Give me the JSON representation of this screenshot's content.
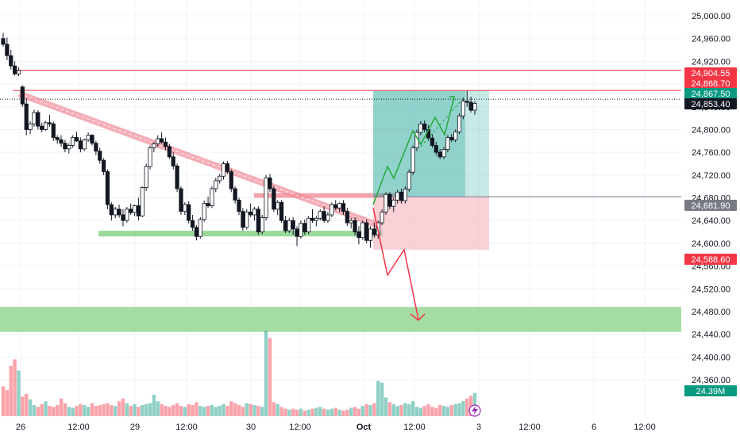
{
  "chart_data": {
    "type": "candlestick",
    "y_axis": {
      "ticks": [
        "25,000.00",
        "24,960.00",
        "24,920.00",
        "24,880.00",
        "24,840.00",
        "24,800.00",
        "24,760.00",
        "24,720.00",
        "24,680.00",
        "24,640.00",
        "24,600.00",
        "24,560.00",
        "24,520.00",
        "24,480.00",
        "24,440.00",
        "24,400.00",
        "24,360.00"
      ],
      "tick_values": [
        25000,
        24960,
        24920,
        24880,
        24840,
        24800,
        24760,
        24720,
        24680,
        24640,
        24600,
        24560,
        24520,
        24480,
        24440,
        24400,
        24360
      ],
      "ylim": [
        24336,
        25021
      ]
    },
    "x_axis": {
      "ticks": [
        {
          "label": "26",
          "bold": false
        },
        {
          "label": "12:00",
          "bold": false
        },
        {
          "label": "29",
          "bold": false
        },
        {
          "label": "12:00",
          "bold": false
        },
        {
          "label": "30",
          "bold": false
        },
        {
          "label": "12:00",
          "bold": false
        },
        {
          "label": "Oct",
          "bold": true
        },
        {
          "label": "12:00",
          "bold": false
        },
        {
          "label": "3",
          "bold": false
        },
        {
          "label": "12:00",
          "bold": false
        },
        {
          "label": "6",
          "bold": false
        },
        {
          "label": "12:00",
          "bold": false
        }
      ]
    },
    "price_labels": [
      {
        "text": "24,904.55",
        "value": 24904.55,
        "color": "#f23645"
      },
      {
        "text": "24,868.70",
        "value": 24868.7,
        "color": "#f23645"
      },
      {
        "text": "24,867.50",
        "value": 24867.5,
        "color": "#089981"
      },
      {
        "text": "24,853.40",
        "value": 24853.4,
        "color": "#131722"
      },
      {
        "text": "24,681.90",
        "value": 24681.9,
        "color": "#787b86"
      },
      {
        "text": "24,588.60",
        "value": 24588.6,
        "color": "#f23645"
      }
    ],
    "volume_label": {
      "text": "24.39M",
      "color": "#089981"
    },
    "horizontal_lines": [
      {
        "value": 24904.55,
        "color": "#f23645"
      },
      {
        "value": 24868.7,
        "color": "#f23645"
      },
      {
        "value": 24853.4,
        "color": "#131722",
        "style": "dotted"
      }
    ],
    "zones": {
      "support": {
        "low": 24612,
        "high": 24622,
        "color": "#7fcf7f"
      },
      "supply": {
        "low": 24680,
        "high": 24688,
        "color": "#f28b98"
      },
      "demand": {
        "low": 24444,
        "high": 24488,
        "color": "#7fcf7f"
      },
      "position_target": {
        "low": 24681.9,
        "high": 24868.7,
        "color": "#26a69a"
      },
      "position_stop": {
        "low": 24588.6,
        "high": 24681.9,
        "color": "#f7b3bb"
      }
    },
    "trendline": {
      "from": 24863,
      "to": 24630,
      "color": "#f28b98"
    },
    "colors": {
      "up": "#089981",
      "down": "#f23645",
      "grid": "#f0f3fa",
      "axis_text": "#131722"
    },
    "candles": [
      [
        24960,
        24970,
        24946,
        24950
      ],
      [
        24950,
        24962,
        24922,
        24930
      ],
      [
        24930,
        24940,
        24906,
        24912
      ],
      [
        24912,
        24920,
        24895,
        24898
      ],
      [
        24898,
        24910,
        24894,
        24904
      ],
      [
        24875,
        24878,
        24840,
        24845
      ],
      [
        24845,
        24855,
        24790,
        24800
      ],
      [
        24800,
        24815,
        24792,
        24810
      ],
      [
        24810,
        24835,
        24805,
        24830
      ],
      [
        24830,
        24834,
        24800,
        24806
      ],
      [
        24806,
        24812,
        24795,
        24800
      ],
      [
        24800,
        24815,
        24798,
        24812
      ],
      [
        24812,
        24826,
        24805,
        24810
      ],
      [
        24810,
        24814,
        24780,
        24786
      ],
      [
        24786,
        24790,
        24775,
        24782
      ],
      [
        24782,
        24790,
        24770,
        24776
      ],
      [
        24776,
        24782,
        24760,
        24766
      ],
      [
        24766,
        24776,
        24758,
        24772
      ],
      [
        24772,
        24790,
        24768,
        24786
      ],
      [
        24786,
        24796,
        24778,
        24780
      ],
      [
        24780,
        24786,
        24760,
        24766
      ],
      [
        24766,
        24784,
        24762,
        24782
      ],
      [
        24782,
        24795,
        24778,
        24790
      ],
      [
        24790,
        24792,
        24772,
        24776
      ],
      [
        24776,
        24780,
        24755,
        24762
      ],
      [
        24762,
        24768,
        24740,
        24746
      ],
      [
        24746,
        24750,
        24720,
        24726
      ],
      [
        24726,
        24730,
        24660,
        24668
      ],
      [
        24668,
        24672,
        24640,
        24650
      ],
      [
        24650,
        24664,
        24644,
        24660
      ],
      [
        24660,
        24668,
        24645,
        24650
      ],
      [
        24650,
        24660,
        24630,
        24640
      ],
      [
        24640,
        24664,
        24636,
        24660
      ],
      [
        24660,
        24670,
        24650,
        24654
      ],
      [
        24654,
        24668,
        24648,
        24666
      ],
      [
        24666,
        24680,
        24640,
        24648
      ],
      [
        24648,
        24700,
        24646,
        24698
      ],
      [
        24698,
        24740,
        24692,
        24735
      ],
      [
        24735,
        24772,
        24730,
        24768
      ],
      [
        24768,
        24778,
        24760,
        24775
      ],
      [
        24775,
        24790,
        24770,
        24784
      ],
      [
        24784,
        24795,
        24775,
        24778
      ],
      [
        24778,
        24786,
        24764,
        24770
      ],
      [
        24770,
        24775,
        24748,
        24752
      ],
      [
        24752,
        24760,
        24730,
        24736
      ],
      [
        24736,
        24740,
        24690,
        24696
      ],
      [
        24696,
        24700,
        24650,
        24656
      ],
      [
        24656,
        24672,
        24650,
        24668
      ],
      [
        24668,
        24674,
        24635,
        24640
      ],
      [
        24640,
        24650,
        24622,
        24628
      ],
      [
        24628,
        24632,
        24605,
        24612
      ],
      [
        24612,
        24646,
        24608,
        24642
      ],
      [
        24642,
        24675,
        24638,
        24670
      ],
      [
        24670,
        24682,
        24662,
        24666
      ],
      [
        24666,
        24700,
        24662,
        24696
      ],
      [
        24696,
        24715,
        24690,
        24710
      ],
      [
        24710,
        24722,
        24705,
        24718
      ],
      [
        24718,
        24744,
        24712,
        24740
      ],
      [
        24740,
        24745,
        24722,
        24726
      ],
      [
        24726,
        24730,
        24690,
        24696
      ],
      [
        24696,
        24700,
        24670,
        24676
      ],
      [
        24676,
        24680,
        24650,
        24656
      ],
      [
        24656,
        24662,
        24622,
        24628
      ],
      [
        24628,
        24660,
        24624,
        24655
      ],
      [
        24655,
        24670,
        24646,
        24650
      ],
      [
        24650,
        24664,
        24640,
        24660
      ],
      [
        24660,
        24665,
        24615,
        24620
      ],
      [
        24620,
        24650,
        24616,
        24645
      ],
      [
        24645,
        24720,
        24640,
        24715
      ],
      [
        24715,
        24722,
        24690,
        24696
      ],
      [
        24696,
        24700,
        24655,
        24660
      ],
      [
        24660,
        24676,
        24650,
        24672
      ],
      [
        24672,
        24676,
        24636,
        24640
      ],
      [
        24640,
        24648,
        24618,
        24622
      ],
      [
        24622,
        24645,
        24618,
        24640
      ],
      [
        24640,
        24646,
        24615,
        24625
      ],
      [
        24625,
        24630,
        24595,
        24612
      ],
      [
        24612,
        24640,
        24608,
        24635
      ],
      [
        24635,
        24642,
        24615,
        24620
      ],
      [
        24620,
        24648,
        24616,
        24644
      ],
      [
        24644,
        24660,
        24636,
        24640
      ],
      [
        24640,
        24648,
        24630,
        24644
      ],
      [
        24644,
        24660,
        24640,
        24656
      ],
      [
        24656,
        24665,
        24636,
        24640
      ],
      [
        24640,
        24655,
        24636,
        24650
      ],
      [
        24650,
        24672,
        24646,
        24668
      ],
      [
        24668,
        24676,
        24658,
        24662
      ],
      [
        24662,
        24672,
        24655,
        24670
      ],
      [
        24670,
        24676,
        24650,
        24656
      ],
      [
        24656,
        24662,
        24630,
        24636
      ],
      [
        24636,
        24644,
        24626,
        24640
      ],
      [
        24640,
        24646,
        24614,
        24620
      ],
      [
        24620,
        24630,
        24598,
        24610
      ],
      [
        24610,
        24640,
        24606,
        24636
      ],
      [
        24636,
        24642,
        24600,
        24605
      ],
      [
        24605,
        24630,
        24592,
        24625
      ],
      [
        24625,
        24636,
        24610,
        24615
      ],
      [
        24615,
        24640,
        24608,
        24636
      ],
      [
        24636,
        24660,
        24632,
        24655
      ],
      [
        24655,
        24690,
        24650,
        24686
      ],
      [
        24686,
        24690,
        24660,
        24665
      ],
      [
        24665,
        24680,
        24655,
        24676
      ],
      [
        24676,
        24694,
        24670,
        24690
      ],
      [
        24690,
        24696,
        24670,
        24675
      ],
      [
        24675,
        24700,
        24670,
        24695
      ],
      [
        24695,
        24730,
        24690,
        24725
      ],
      [
        24725,
        24772,
        24720,
        24768
      ],
      [
        24768,
        24800,
        24762,
        24795
      ],
      [
        24795,
        24815,
        24790,
        24810
      ],
      [
        24810,
        24816,
        24795,
        24800
      ],
      [
        24800,
        24808,
        24780,
        24785
      ],
      [
        24785,
        24792,
        24768,
        24772
      ],
      [
        24772,
        24778,
        24755,
        24760
      ],
      [
        24760,
        24766,
        24748,
        24752
      ],
      [
        24752,
        24770,
        24748,
        24765
      ],
      [
        24765,
        24790,
        24760,
        24786
      ],
      [
        24786,
        24792,
        24778,
        24782
      ],
      [
        24782,
        24800,
        24778,
        24796
      ],
      [
        24796,
        24828,
        24792,
        24824
      ],
      [
        24824,
        24856,
        24818,
        24850
      ],
      [
        24850,
        24868,
        24840,
        24848
      ],
      [
        24848,
        24858,
        24830,
        24834
      ],
      [
        24834,
        24850,
        24826,
        24846
      ]
    ],
    "volumes": [
      3.2,
      2.8,
      5.4,
      6.1,
      4.9,
      2.1,
      2.4,
      1.8,
      1.2,
      1.0,
      1.3,
      1.6,
      1.1,
      1.0,
      1.2,
      1.9,
      1.4,
      1.0,
      0.9,
      1.1,
      1.3,
      1.2,
      1.0,
      1.4,
      1.1,
      1.2,
      1.3,
      1.4,
      1.2,
      1.1,
      1.6,
      1.9,
      1.4,
      1.1,
      1.3,
      1.0,
      1.2,
      1.3,
      1.4,
      2.3,
      1.6,
      1.3,
      1.1,
      1.0,
      1.2,
      1.4,
      1.1,
      1.0,
      1.3,
      1.2,
      1.5,
      1.1,
      1.0,
      1.1,
      1.2,
      1.0,
      1.1,
      1.3,
      1.1,
      1.6,
      1.4,
      1.2,
      1.0,
      1.4,
      1.3,
      1.2,
      1.1,
      1.0,
      9.2,
      8.4,
      1.5,
      1.3,
      1.0,
      0.8,
      0.7,
      0.8,
      0.7,
      0.8,
      0.6,
      0.7,
      0.8,
      0.9,
      1.0,
      0.8,
      0.7,
      0.8,
      0.9,
      0.7,
      0.6,
      0.7,
      0.9,
      1.0,
      0.8,
      1.1,
      1.3,
      1.2,
      1.4,
      3.8,
      3.6,
      2.0,
      1.5,
      1.3,
      1.1,
      1.2,
      1.4,
      1.3,
      1.6,
      1.0,
      0.9,
      1.1,
      1.3,
      1.0,
      0.9,
      1.2,
      1.1,
      1.0,
      1.2,
      1.3,
      1.4,
      1.6,
      1.9,
      2.2,
      2.5
    ]
  }
}
